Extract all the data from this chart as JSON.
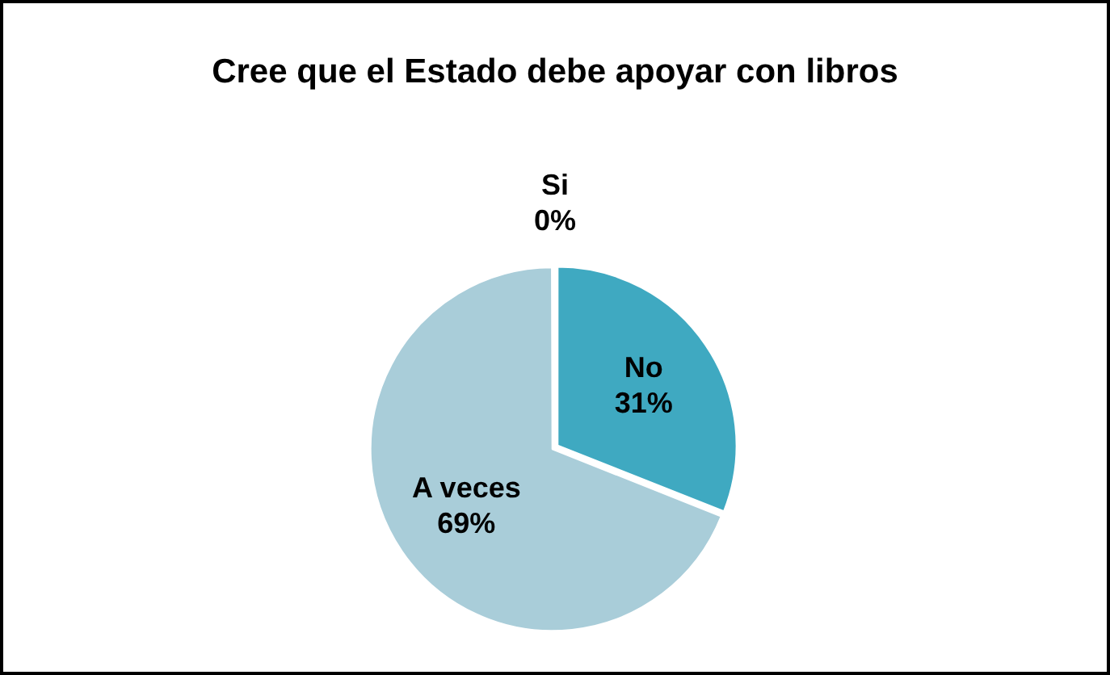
{
  "chart_data": {
    "type": "pie",
    "title": "Cree que el Estado debe apoyar con libros",
    "categories": [
      "Si",
      "No",
      "A veces"
    ],
    "values": [
      0,
      31,
      69
    ],
    "colors": [
      "#4f81bd",
      "#3fa9c1",
      "#a9cdd9"
    ],
    "value_labels": [
      "0%",
      "31%",
      "69%"
    ],
    "legend": false
  }
}
